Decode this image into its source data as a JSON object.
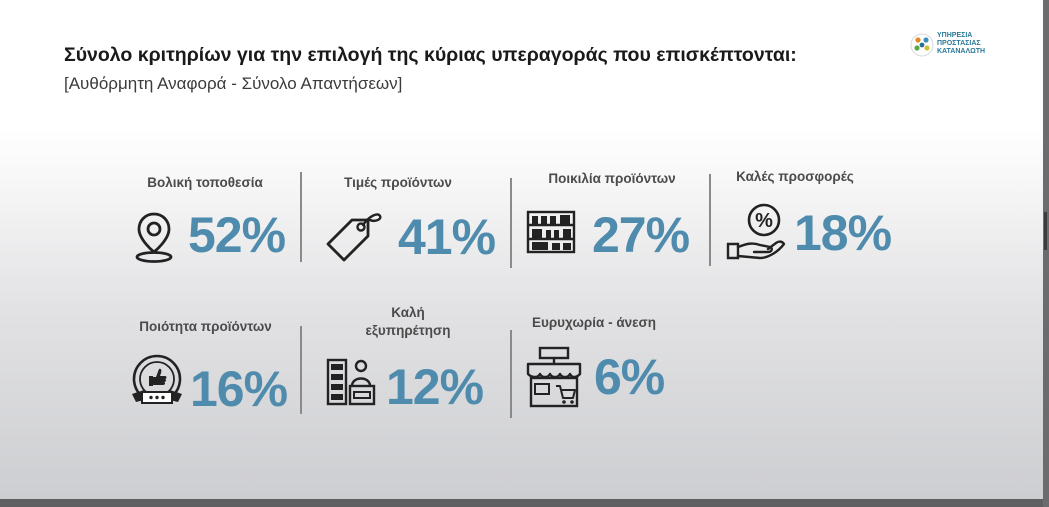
{
  "slide": {
    "title": "Σύνολο κριτηρίων για την επιλογή της κύριας υπεραγοράς που επισκέπτονται:",
    "subtitle": "[Αυθόρμητη Αναφορά - Σύνολο Απαντήσεων]"
  },
  "logo": {
    "line1": "ΥΠΗΡΕΣΙΑ",
    "line2": "ΠΡΟΣΤΑΣΙΑΣ",
    "line3": "ΚΑΤΑΝΑΛΩΤΗ"
  },
  "colors": {
    "accent": "#4f8bad",
    "label": "#4b4b4b",
    "title": "#1a1a1a"
  },
  "stats": [
    {
      "label": "Βολική τοποθεσία",
      "value": "52%",
      "icon": "location-pin-icon"
    },
    {
      "label": "Τιμές προϊόντων",
      "value": "41%",
      "icon": "price-tag-icon"
    },
    {
      "label": "Ποικιλία προϊόντων",
      "value": "27%",
      "icon": "store-shelves-icon"
    },
    {
      "label": "Καλές προσφορές",
      "value": "18%",
      "icon": "discount-hand-icon"
    },
    {
      "label": "Ποιότητα προϊόντων",
      "value": "16%",
      "icon": "quality-badge-icon"
    },
    {
      "label_line1": "Καλή",
      "label_line2": "εξυπηρέτηση",
      "value": "12%",
      "icon": "cashier-icon"
    },
    {
      "label": "Ευρυχωρία - άνεση",
      "value": "6%",
      "icon": "storefront-icon"
    }
  ]
}
